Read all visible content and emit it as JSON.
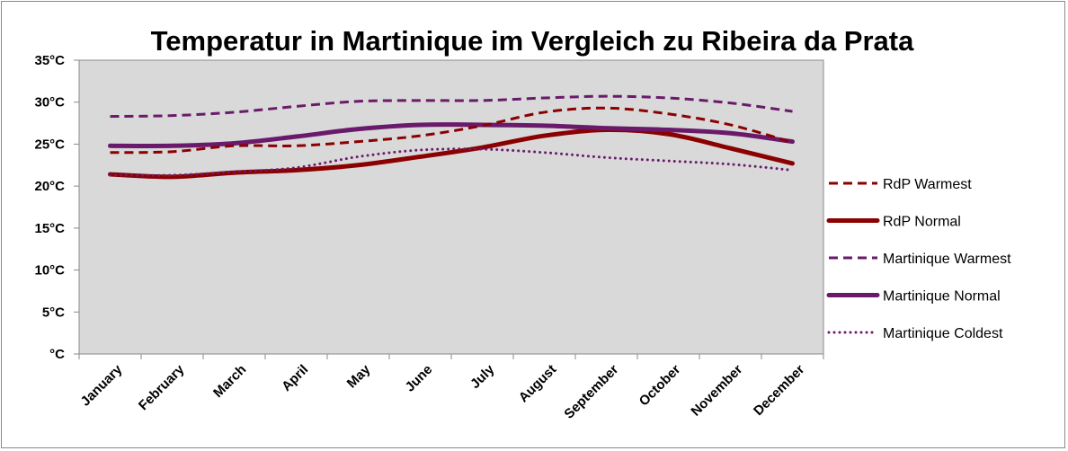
{
  "chart_data": {
    "type": "line",
    "title": "Temperatur in Martinique im Vergleich zu Ribeira da Prata",
    "xlabel": "",
    "ylabel": "",
    "categories": [
      "January",
      "February",
      "March",
      "April",
      "May",
      "June",
      "July",
      "August",
      "September",
      "October",
      "November",
      "December"
    ],
    "ylim": [
      0,
      35
    ],
    "yticks": [
      0,
      5,
      10,
      15,
      20,
      25,
      30,
      35
    ],
    "ytick_labels": [
      "°C",
      "5°C",
      "10°C",
      "15°C",
      "20°C",
      "25°C",
      "30°C",
      "35°C"
    ],
    "grid": false,
    "plot_background": "#d9d9d9",
    "legend_position": "right",
    "series": [
      {
        "name": "RdP Warmest",
        "color": "#8b0000",
        "style": "dashed",
        "width": "medium",
        "values": [
          24.0,
          24.1,
          24.8,
          24.8,
          25.3,
          26.0,
          27.2,
          28.8,
          29.3,
          28.6,
          27.3,
          25.2
        ]
      },
      {
        "name": "RdP Normal",
        "color": "#8b0000",
        "style": "solid",
        "width": "thick",
        "values": [
          21.4,
          21.1,
          21.6,
          21.9,
          22.5,
          23.5,
          24.6,
          26.0,
          26.7,
          26.2,
          24.5,
          22.7
        ]
      },
      {
        "name": "Martinique Warmest",
        "color": "#6a1a6a",
        "style": "dashed",
        "width": "medium",
        "values": [
          28.3,
          28.4,
          28.8,
          29.5,
          30.1,
          30.2,
          30.2,
          30.5,
          30.7,
          30.5,
          29.9,
          28.9
        ]
      },
      {
        "name": "Martinique Normal",
        "color": "#6a1a6a",
        "style": "solid",
        "width": "thick",
        "values": [
          24.8,
          24.8,
          25.1,
          25.9,
          26.8,
          27.3,
          27.3,
          27.2,
          26.9,
          26.7,
          26.3,
          25.3
        ]
      },
      {
        "name": "Martinique Coldest",
        "color": "#6a1a6a",
        "style": "dotted",
        "width": "medium",
        "values": [
          21.3,
          21.3,
          21.7,
          22.2,
          23.5,
          24.3,
          24.4,
          24.0,
          23.4,
          23.0,
          22.6,
          21.9
        ]
      }
    ]
  }
}
